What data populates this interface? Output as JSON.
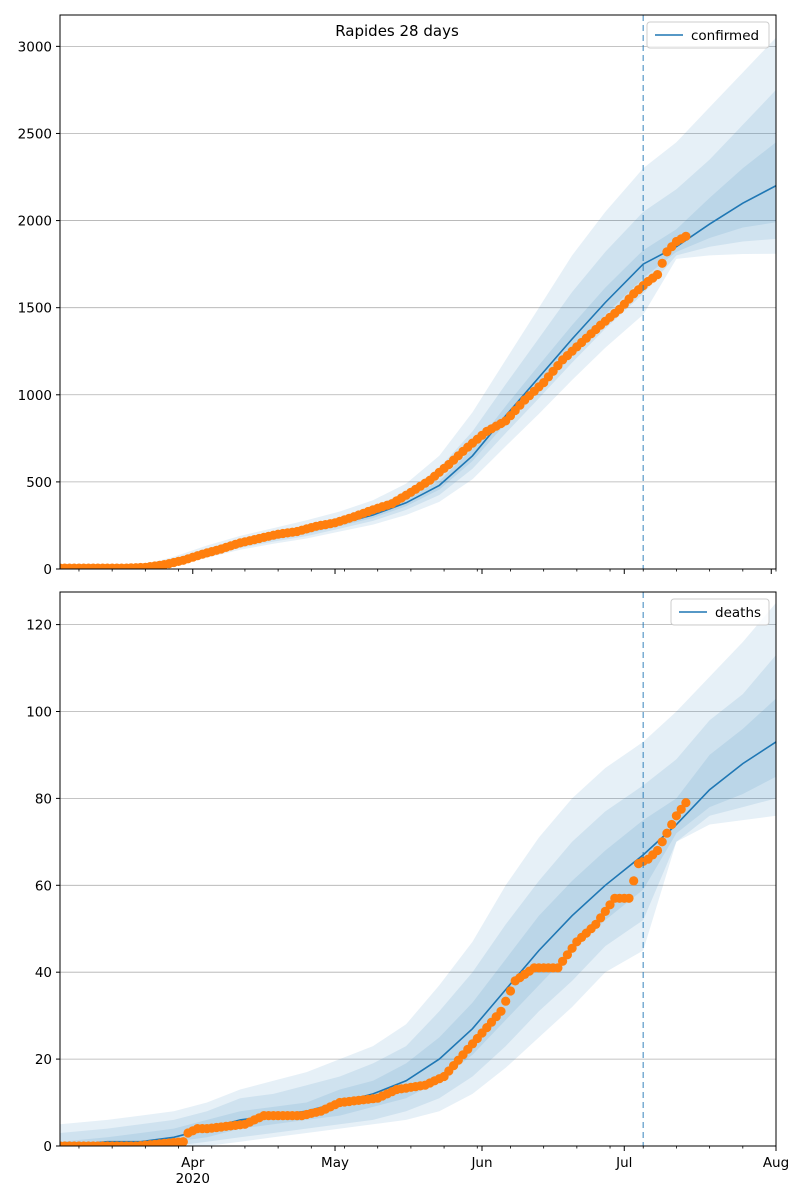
{
  "figure_title": "Rapides 28 days",
  "colors": {
    "model_line": "#1f77b4",
    "observed": "#ff7f0e",
    "band": "#1f77b4",
    "grid": "#b0b0b0",
    "cutoff_line": "#1f77b4"
  },
  "chart_data": [
    {
      "type": "line",
      "panel": "confirmed",
      "legend_label": "confirmed",
      "legend_position": "top-right",
      "grid": "y",
      "xlim": [
        "2020-03-04",
        "2020-08-02"
      ],
      "ylim": [
        0,
        3180
      ],
      "yticks": [
        0,
        500,
        1000,
        1500,
        2000,
        2500,
        3000
      ],
      "xticks": [
        {
          "date": "2020-04-01",
          "label": "Apr",
          "sublabel": "2020"
        },
        {
          "date": "2020-05-01",
          "label": "May",
          "sublabel": ""
        },
        {
          "date": "2020-06-01",
          "label": "Jun",
          "sublabel": ""
        },
        {
          "date": "2020-07-01",
          "label": "Jul",
          "sublabel": ""
        },
        {
          "date": "2020-08-01",
          "label": "Aug",
          "sublabel": ""
        }
      ],
      "cutoff_date": "2020-07-05",
      "model": {
        "dates": [
          "2020-03-04",
          "2020-03-14",
          "2020-03-21",
          "2020-03-28",
          "2020-04-04",
          "2020-04-11",
          "2020-04-18",
          "2020-04-25",
          "2020-05-02",
          "2020-05-09",
          "2020-05-16",
          "2020-05-23",
          "2020-05-30",
          "2020-06-06",
          "2020-06-13",
          "2020-06-20",
          "2020-06-27",
          "2020-07-05",
          "2020-07-12",
          "2020-07-19",
          "2020-07-26",
          "2020-08-02"
        ],
        "median": [
          0,
          2,
          8,
          40,
          95,
          145,
          180,
          215,
          260,
          310,
          380,
          480,
          650,
          880,
          1100,
          1320,
          1530,
          1750,
          1850,
          1980,
          2100,
          2200
        ],
        "bands": [
          {
            "lower": [
              0,
              0,
              2,
              20,
              65,
              110,
              145,
              175,
              215,
              255,
              310,
              385,
              515,
              705,
              890,
              1085,
              1270,
              1460,
              1780,
              1800,
              1808,
              1810
            ],
            "upper": [
              0,
              8,
              20,
              70,
              135,
              190,
              235,
              280,
              330,
              395,
              490,
              650,
              900,
              1200,
              1500,
              1800,
              2050,
              2300,
              2450,
              2650,
              2850,
              3050
            ]
          },
          {
            "lower": [
              0,
              1,
              4,
              26,
              74,
              121,
              157,
              189,
              232,
              276,
              339,
              425,
              575,
              780,
              980,
              1185,
              1380,
              1580,
              1800,
              1850,
              1880,
              1895
            ],
            "upper": [
              0,
              5,
              14,
              56,
              118,
              170,
              212,
              250,
              297,
              355,
              442,
              580,
              790,
              1060,
              1325,
              1590,
              1820,
              2050,
              2180,
              2350,
              2550,
              2750
            ]
          },
          {
            "lower": [
              0,
              1,
              6,
              33,
              84,
              134,
              169,
              202,
              246,
              293,
              360,
              456,
              620,
              835,
              1045,
              1255,
              1460,
              1670,
              1820,
              1900,
              1960,
              1990
            ],
            "upper": [
              0,
              3,
              10,
              47,
              106,
              156,
              191,
              228,
              274,
              327,
              400,
              505,
              690,
              935,
              1170,
              1400,
              1615,
              1830,
              1950,
              2130,
              2300,
              2450
            ]
          }
        ]
      },
      "observed": {
        "start_date": "2020-03-04",
        "end_date": "2020-07-14",
        "anchor_dates": [
          "2020-03-04",
          "2020-03-18",
          "2020-03-22",
          "2020-03-26",
          "2020-03-30",
          "2020-04-03",
          "2020-04-07",
          "2020-04-11",
          "2020-04-15",
          "2020-04-19",
          "2020-04-23",
          "2020-04-27",
          "2020-05-01",
          "2020-05-05",
          "2020-05-09",
          "2020-05-13",
          "2020-05-17",
          "2020-05-21",
          "2020-05-25",
          "2020-05-29",
          "2020-06-02",
          "2020-06-06",
          "2020-06-10",
          "2020-06-14",
          "2020-06-18",
          "2020-06-22",
          "2020-06-26",
          "2020-06-30",
          "2020-07-03",
          "2020-07-06",
          "2020-07-08",
          "2020-07-10",
          "2020-07-12",
          "2020-07-14"
        ],
        "anchor_values": [
          5,
          5,
          10,
          25,
          50,
          85,
          115,
          150,
          175,
          200,
          215,
          245,
          265,
          300,
          340,
          375,
          440,
          510,
          600,
          700,
          790,
          850,
          970,
          1070,
          1200,
          1300,
          1400,
          1490,
          1580,
          1650,
          1690,
          1820,
          1880,
          1910
        ]
      }
    },
    {
      "type": "line",
      "panel": "deaths",
      "legend_label": "deaths",
      "legend_position": "top-right",
      "grid": "y",
      "xlim": [
        "2020-03-04",
        "2020-08-02"
      ],
      "ylim": [
        0,
        127.5
      ],
      "yticks": [
        0,
        20,
        40,
        60,
        80,
        100,
        120
      ],
      "xticks": [
        {
          "date": "2020-04-01",
          "label": "Apr",
          "sublabel": "2020"
        },
        {
          "date": "2020-05-01",
          "label": "May",
          "sublabel": ""
        },
        {
          "date": "2020-06-01",
          "label": "Jun",
          "sublabel": ""
        },
        {
          "date": "2020-07-01",
          "label": "Jul",
          "sublabel": ""
        },
        {
          "date": "2020-08-02",
          "label": "Aug",
          "sublabel": ""
        }
      ],
      "cutoff_date": "2020-07-05",
      "model": {
        "dates": [
          "2020-03-04",
          "2020-03-14",
          "2020-03-21",
          "2020-03-28",
          "2020-04-04",
          "2020-04-11",
          "2020-04-18",
          "2020-04-25",
          "2020-05-02",
          "2020-05-09",
          "2020-05-16",
          "2020-05-23",
          "2020-05-30",
          "2020-06-06",
          "2020-06-13",
          "2020-06-20",
          "2020-06-27",
          "2020-07-05",
          "2020-07-12",
          "2020-07-19",
          "2020-07-26",
          "2020-08-02"
        ],
        "median": [
          0,
          1,
          1,
          2,
          4,
          6,
          7,
          8,
          10,
          12,
          15,
          20,
          27,
          36,
          45,
          53,
          60,
          67,
          74,
          82,
          88,
          93
        ],
        "bands": [
          {
            "lower": [
              0,
              0,
              0,
              0,
              0,
              1,
              2,
              3,
              4,
              5,
              6,
              8,
              12,
              18,
              25,
              32,
              40,
              45,
              70,
              74,
              75,
              76
            ],
            "upper": [
              5,
              6,
              7,
              8,
              10,
              13,
              15,
              17,
              20,
              23,
              28,
              37,
              47,
              60,
              71,
              80,
              87,
              93,
              100,
              108,
              116,
              125
            ]
          },
          {
            "lower": [
              0,
              0,
              0,
              0,
              1,
              2,
              3,
              4,
              5,
              6,
              8,
              11,
              16,
              23,
              31,
              38,
              46,
              52,
              70,
              76,
              78,
              80
            ],
            "upper": [
              3,
              4,
              5,
              6,
              8,
              11,
              12,
              14,
              16,
              19,
              23,
              31,
              40,
              51,
              61,
              70,
              77,
              83,
              89,
              98,
              104,
              113
            ]
          },
          {
            "lower": [
              0,
              0,
              0,
              1,
              2,
              4,
              5,
              6,
              7,
              9,
              11,
              15,
              21,
              29,
              37,
              45,
              52,
              59,
              72,
              78,
              81,
              85
            ],
            "upper": [
              1,
              2,
              3,
              4,
              6,
              8,
              9,
              10,
              13,
              15,
              19,
              25,
              33,
              43,
              53,
              61,
              68,
              75,
              80,
              90,
              96,
              103
            ]
          }
        ]
      },
      "observed": {
        "start_date": "2020-03-04",
        "end_date": "2020-07-14",
        "anchor_dates": [
          "2020-03-04",
          "2020-03-20",
          "2020-03-30",
          "2020-03-31",
          "2020-04-02",
          "2020-04-04",
          "2020-04-12",
          "2020-04-16",
          "2020-04-24",
          "2020-04-28",
          "2020-05-02",
          "2020-05-10",
          "2020-05-14",
          "2020-05-20",
          "2020-05-24",
          "2020-05-28",
          "2020-06-01",
          "2020-06-05",
          "2020-06-08",
          "2020-06-12",
          "2020-06-17",
          "2020-06-21",
          "2020-06-25",
          "2020-06-29",
          "2020-07-02",
          "2020-07-04",
          "2020-07-06",
          "2020-07-08",
          "2020-07-10",
          "2020-07-12",
          "2020-07-14"
        ],
        "anchor_values": [
          0,
          0,
          1,
          3,
          4,
          4,
          5,
          7,
          7,
          8,
          10,
          11,
          13,
          14,
          16,
          21,
          26,
          31,
          38,
          41,
          41,
          47,
          51,
          57,
          57,
          65,
          66,
          68,
          72,
          76,
          79
        ]
      }
    }
  ]
}
